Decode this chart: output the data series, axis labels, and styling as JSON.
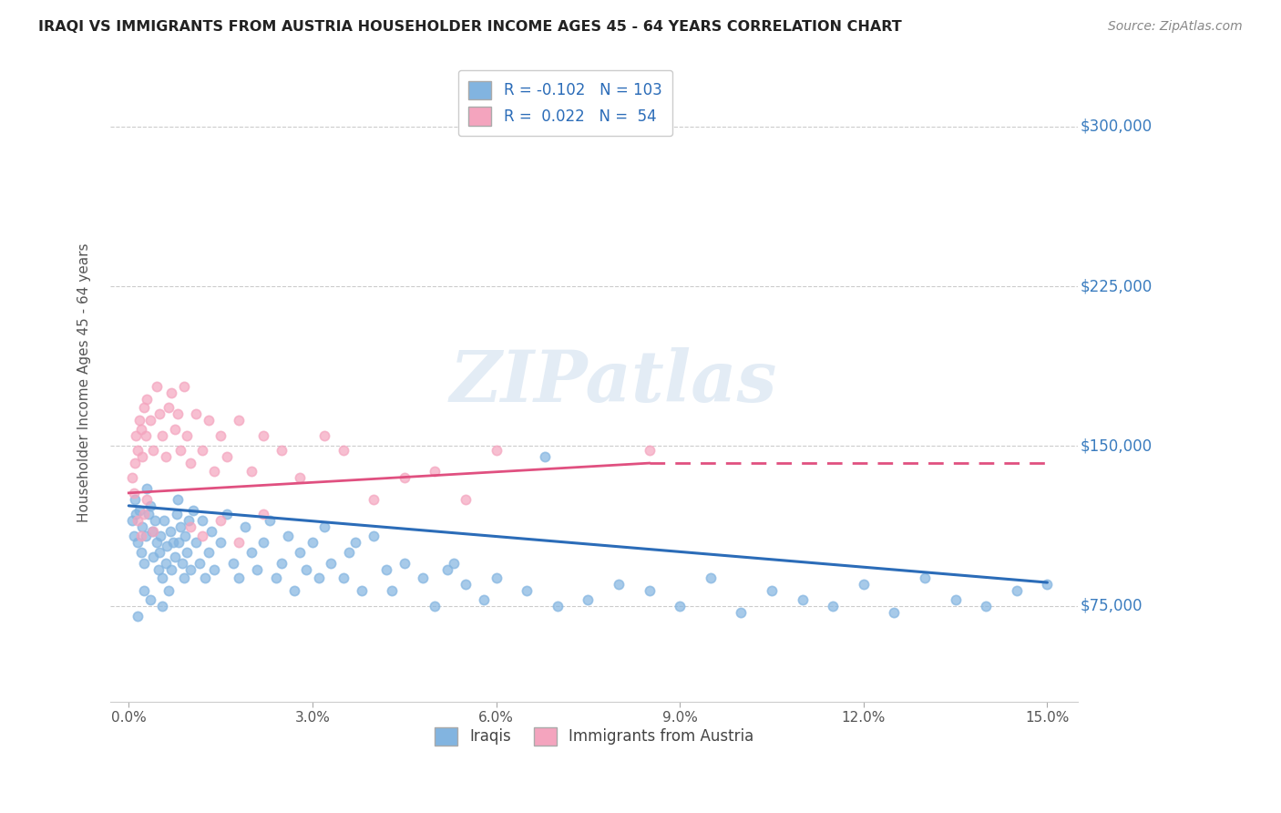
{
  "title": "IRAQI VS IMMIGRANTS FROM AUSTRIA HOUSEHOLDER INCOME AGES 45 - 64 YEARS CORRELATION CHART",
  "source": "Source: ZipAtlas.com",
  "ylabel": "Householder Income Ages 45 - 64 years",
  "xlabel_ticks": [
    "0.0%",
    "3.0%",
    "6.0%",
    "9.0%",
    "12.0%",
    "15.0%"
  ],
  "xlabel_vals": [
    0.0,
    3.0,
    6.0,
    9.0,
    12.0,
    15.0
  ],
  "ytick_labels": [
    "$75,000",
    "$150,000",
    "$225,000",
    "$300,000"
  ],
  "ytick_vals": [
    75000,
    150000,
    225000,
    300000
  ],
  "ylim": [
    30000,
    330000
  ],
  "xlim": [
    -0.3,
    15.5
  ],
  "blue_color": "#82b4e0",
  "pink_color": "#f4a4be",
  "trend_blue": "#2b6cb8",
  "trend_pink": "#e05080",
  "legend_R1": "-0.102",
  "legend_N1": "103",
  "legend_R2": "0.022",
  "legend_N2": "54",
  "legend_label1": "Iraqis",
  "legend_label2": "Immigrants from Austria",
  "watermark": "ZIPatlas",
  "blue_trend_x": [
    0,
    15
  ],
  "blue_trend_y": [
    122000,
    86000
  ],
  "pink_trend_x": [
    0,
    8.5,
    15
  ],
  "pink_trend_y": [
    128000,
    142000,
    142000
  ],
  "blue_scatter_x": [
    0.05,
    0.08,
    0.1,
    0.12,
    0.15,
    0.18,
    0.2,
    0.22,
    0.25,
    0.28,
    0.3,
    0.32,
    0.35,
    0.38,
    0.4,
    0.42,
    0.45,
    0.48,
    0.5,
    0.52,
    0.55,
    0.58,
    0.6,
    0.62,
    0.65,
    0.68,
    0.7,
    0.72,
    0.75,
    0.78,
    0.8,
    0.82,
    0.85,
    0.88,
    0.9,
    0.92,
    0.95,
    0.98,
    1.0,
    1.05,
    1.1,
    1.15,
    1.2,
    1.25,
    1.3,
    1.35,
    1.4,
    1.5,
    1.6,
    1.7,
    1.8,
    1.9,
    2.0,
    2.1,
    2.2,
    2.3,
    2.4,
    2.5,
    2.6,
    2.7,
    2.8,
    2.9,
    3.0,
    3.1,
    3.2,
    3.3,
    3.5,
    3.6,
    3.8,
    4.0,
    4.2,
    4.5,
    4.8,
    5.0,
    5.2,
    5.5,
    5.8,
    6.0,
    6.5,
    7.0,
    7.5,
    8.0,
    8.5,
    9.0,
    9.5,
    10.0,
    10.5,
    11.0,
    11.5,
    12.0,
    12.5,
    13.0,
    13.5,
    14.0,
    14.5,
    15.0,
    3.7,
    4.3,
    5.3,
    6.8,
    0.15,
    0.25,
    0.35,
    0.55
  ],
  "blue_scatter_y": [
    115000,
    108000,
    125000,
    118000,
    105000,
    120000,
    100000,
    112000,
    95000,
    108000,
    130000,
    118000,
    122000,
    110000,
    98000,
    115000,
    105000,
    92000,
    100000,
    108000,
    88000,
    115000,
    95000,
    103000,
    82000,
    110000,
    92000,
    105000,
    98000,
    118000,
    125000,
    105000,
    112000,
    95000,
    88000,
    108000,
    100000,
    115000,
    92000,
    120000,
    105000,
    95000,
    115000,
    88000,
    100000,
    110000,
    92000,
    105000,
    118000,
    95000,
    88000,
    112000,
    100000,
    92000,
    105000,
    115000,
    88000,
    95000,
    108000,
    82000,
    100000,
    92000,
    105000,
    88000,
    112000,
    95000,
    88000,
    100000,
    82000,
    108000,
    92000,
    95000,
    88000,
    75000,
    92000,
    85000,
    78000,
    88000,
    82000,
    75000,
    78000,
    85000,
    82000,
    75000,
    88000,
    72000,
    82000,
    78000,
    75000,
    85000,
    72000,
    88000,
    78000,
    75000,
    82000,
    85000,
    105000,
    82000,
    95000,
    145000,
    70000,
    82000,
    78000,
    75000
  ],
  "pink_scatter_x": [
    0.05,
    0.08,
    0.1,
    0.12,
    0.15,
    0.18,
    0.2,
    0.22,
    0.25,
    0.28,
    0.3,
    0.35,
    0.4,
    0.45,
    0.5,
    0.55,
    0.6,
    0.65,
    0.7,
    0.75,
    0.8,
    0.85,
    0.9,
    0.95,
    1.0,
    1.1,
    1.2,
    1.3,
    1.4,
    1.5,
    1.6,
    1.8,
    2.0,
    2.2,
    2.5,
    2.8,
    3.2,
    3.5,
    4.0,
    4.5,
    5.0,
    5.5,
    6.0,
    8.5,
    0.3,
    0.25,
    0.2,
    0.15,
    0.4,
    1.0,
    1.2,
    1.5,
    1.8,
    2.2
  ],
  "pink_scatter_y": [
    135000,
    128000,
    142000,
    155000,
    148000,
    162000,
    158000,
    145000,
    168000,
    155000,
    172000,
    162000,
    148000,
    178000,
    165000,
    155000,
    145000,
    168000,
    175000,
    158000,
    165000,
    148000,
    178000,
    155000,
    142000,
    165000,
    148000,
    162000,
    138000,
    155000,
    145000,
    162000,
    138000,
    155000,
    148000,
    135000,
    155000,
    148000,
    125000,
    135000,
    138000,
    125000,
    148000,
    148000,
    125000,
    118000,
    108000,
    115000,
    110000,
    112000,
    108000,
    115000,
    105000,
    118000
  ]
}
